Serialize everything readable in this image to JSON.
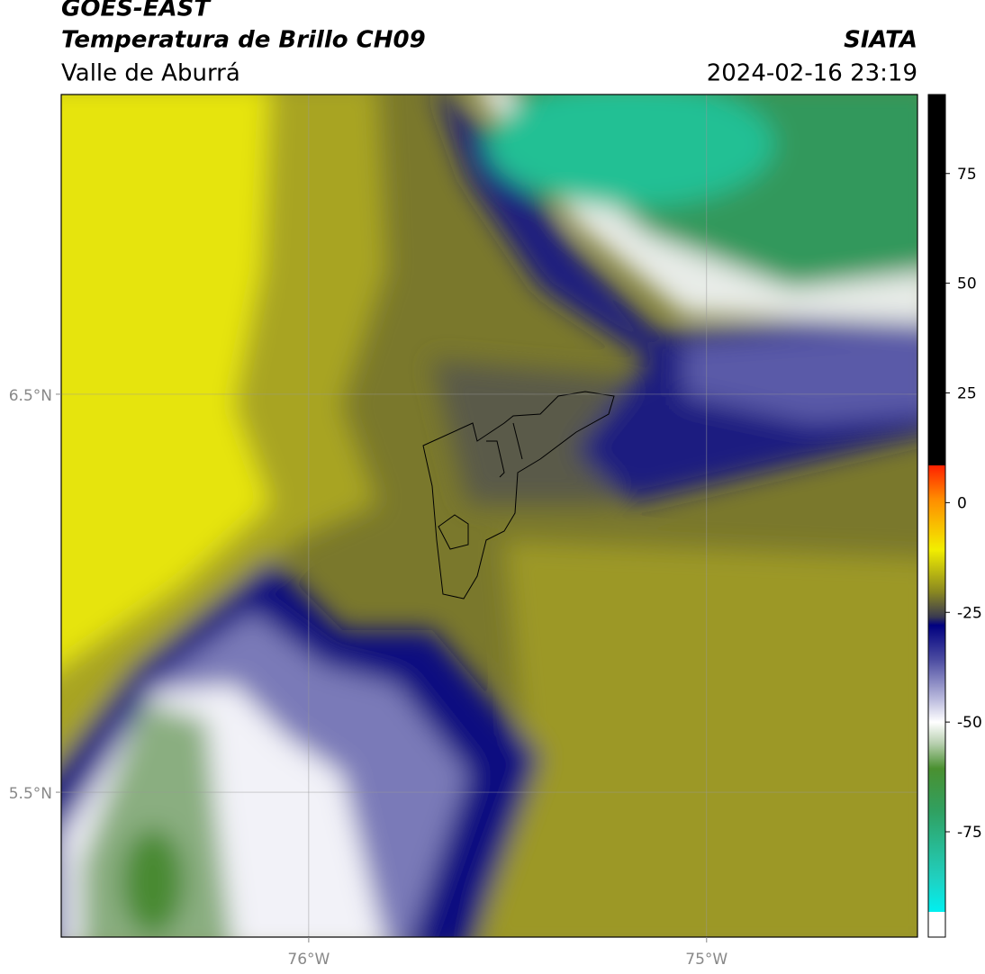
{
  "header": {
    "title": "GOES-EAST",
    "subtitle": "Temperatura de Brillo CH09",
    "region": "Valle de Aburrá",
    "source": "SIATA",
    "datetime": "2024-02-16 23:19"
  },
  "map": {
    "lonlim": [
      -76.622,
      -74.47
    ],
    "latlim": [
      5.136,
      7.253
    ],
    "lat_ticks": [
      {
        "value": 6.5,
        "label": "6.5°N"
      },
      {
        "value": 5.5,
        "label": "5.5°N"
      }
    ],
    "lon_ticks": [
      {
        "value": -76,
        "label": "76°W"
      },
      {
        "value": -75,
        "label": "75°W"
      }
    ],
    "grid": true
  },
  "colorbar": {
    "lim": [
      -99,
      93
    ],
    "ticks": [
      75,
      50,
      25,
      0,
      -25,
      -50,
      -75
    ]
  }
}
